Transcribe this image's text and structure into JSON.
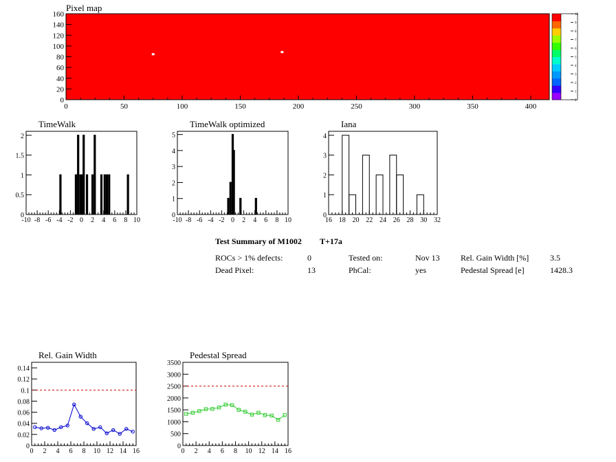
{
  "colors": {
    "map_red": "#ff0000",
    "hist_line": "#000000",
    "gain_line": "#0000cc",
    "pedestal_line": "#33cc33",
    "ref_line": "#cc0000"
  },
  "chart_data": [
    {
      "type": "heatmap",
      "title": "Pixel map",
      "xlim": [
        0,
        416
      ],
      "ylim": [
        0,
        160
      ],
      "x_ticks": [
        "0",
        "50",
        "100",
        "150",
        "200",
        "250",
        "300",
        "350",
        "400"
      ],
      "y_ticks": [
        "0",
        "20",
        "40",
        "60",
        "80",
        "100",
        "120",
        "140",
        "160"
      ],
      "fill_value": 10,
      "hot_pixels": [
        {
          "x": 75,
          "y": 84,
          "value": 0
        },
        {
          "x": 186,
          "y": 88,
          "value": 0
        }
      ],
      "colorbar": {
        "range": [
          0,
          10
        ],
        "labels": [
          "0",
          "1",
          "2",
          "3",
          "4",
          "5",
          "6",
          "7",
          "8",
          "9",
          "10"
        ],
        "palette": [
          "#9900ff",
          "#3300ff",
          "#0066ff",
          "#0099ff",
          "#00ccff",
          "#00ffcc",
          "#00ff66",
          "#33ff00",
          "#99ff00",
          "#ffcc00",
          "#ff6600",
          "#ff0000"
        ]
      }
    },
    {
      "type": "bar",
      "title": "TimeWalk",
      "xlim": [
        -10,
        10
      ],
      "ylim": [
        0,
        2.1
      ],
      "x_ticks": [
        "-10",
        "-8",
        "-6",
        "-4",
        "-2",
        "0",
        "2",
        "4",
        "6",
        "8",
        "10"
      ],
      "y_ticks": [
        "0",
        "0.5",
        "1",
        "1.5",
        "2"
      ],
      "bin_width": 0.2,
      "bins": [
        {
          "x": -3.9,
          "value": 1
        },
        {
          "x": -1.1,
          "value": 1
        },
        {
          "x": -0.7,
          "value": 2
        },
        {
          "x": -0.3,
          "value": 1
        },
        {
          "x": 0.1,
          "value": 1
        },
        {
          "x": 0.3,
          "value": 2
        },
        {
          "x": 0.9,
          "value": 1
        },
        {
          "x": 1.9,
          "value": 1
        },
        {
          "x": 2.3,
          "value": 2
        },
        {
          "x": 3.5,
          "value": 1
        },
        {
          "x": 4.1,
          "value": 1
        },
        {
          "x": 4.5,
          "value": 1
        },
        {
          "x": 4.9,
          "value": 1
        },
        {
          "x": 8.3,
          "value": 1
        }
      ]
    },
    {
      "type": "bar",
      "title": "TimeWalk optimized",
      "xlim": [
        -10,
        10
      ],
      "ylim": [
        0,
        5.2
      ],
      "x_ticks": [
        "-10",
        "-8",
        "-6",
        "-4",
        "-2",
        "0",
        "2",
        "4",
        "6",
        "8",
        "10"
      ],
      "y_ticks": [
        "0",
        "1",
        "2",
        "3",
        "4",
        "5"
      ],
      "bin_width": 0.2,
      "bins": [
        {
          "x": -0.9,
          "value": 1
        },
        {
          "x": -0.5,
          "value": 2
        },
        {
          "x": -0.1,
          "value": 5
        },
        {
          "x": 0.1,
          "value": 4
        },
        {
          "x": 1.3,
          "value": 1
        },
        {
          "x": 4.1,
          "value": 1
        }
      ]
    },
    {
      "type": "bar",
      "title": "Iana",
      "xlim": [
        16,
        32
      ],
      "ylim": [
        0,
        4.2
      ],
      "x_ticks": [
        "16",
        "18",
        "20",
        "22",
        "24",
        "26",
        "28",
        "30",
        "32"
      ],
      "y_ticks": [
        "0",
        "1",
        "2",
        "3",
        "4"
      ],
      "bin_width": 1,
      "bins": [
        {
          "x": 18,
          "value": 4
        },
        {
          "x": 19,
          "value": 1
        },
        {
          "x": 21,
          "value": 3
        },
        {
          "x": 23,
          "value": 2
        },
        {
          "x": 25,
          "value": 3
        },
        {
          "x": 26,
          "value": 2
        },
        {
          "x": 29,
          "value": 1
        }
      ]
    },
    {
      "type": "line",
      "title": "Rel. Gain Width",
      "xlim": [
        0,
        16
      ],
      "ylim": [
        0,
        0.15
      ],
      "x_ticks": [
        "0",
        "2",
        "4",
        "6",
        "8",
        "10",
        "12",
        "14",
        "16"
      ],
      "y_ticks": [
        "0",
        "0.02",
        "0.04",
        "0.06",
        "0.08",
        "0.1",
        "0.12",
        "0.14"
      ],
      "x": [
        0.5,
        1.5,
        2.5,
        3.5,
        4.5,
        5.5,
        6.5,
        7.5,
        8.5,
        9.5,
        10.5,
        11.5,
        12.5,
        13.5,
        14.5,
        15.5
      ],
      "values": [
        0.033,
        0.031,
        0.032,
        0.028,
        0.033,
        0.036,
        0.074,
        0.052,
        0.04,
        0.03,
        0.033,
        0.022,
        0.028,
        0.021,
        0.03,
        0.025
      ],
      "reference": 0.1
    },
    {
      "type": "line",
      "title": "Pedestal Spread",
      "xlim": [
        0,
        16
      ],
      "ylim": [
        0,
        3500
      ],
      "x_ticks": [
        "0",
        "2",
        "4",
        "6",
        "8",
        "10",
        "12",
        "14",
        "16"
      ],
      "y_ticks": [
        "0",
        "500",
        "1000",
        "1500",
        "2000",
        "2500",
        "3000",
        "3500"
      ],
      "x": [
        0.5,
        1.5,
        2.5,
        3.5,
        4.5,
        5.5,
        6.5,
        7.5,
        8.5,
        9.5,
        10.5,
        11.5,
        12.5,
        13.5,
        14.5,
        15.5
      ],
      "values": [
        1330,
        1380,
        1450,
        1530,
        1540,
        1600,
        1720,
        1700,
        1500,
        1420,
        1300,
        1380,
        1280,
        1260,
        1080,
        1280
      ],
      "reference": 2500
    }
  ],
  "summary": {
    "title": "Test Summary of M1002",
    "grade": "T+17a",
    "rocs_label": "ROCs > 1% defects:",
    "rocs_value": "0",
    "dead_label": "Dead Pixel:",
    "dead_value": "13",
    "tested_label": "Tested on:",
    "tested_value": "Nov 13",
    "phcal_label": "PhCal:",
    "phcal_value": "yes",
    "gainw_label": "Rel. Gain Width [%]",
    "gainw_value": "3.5",
    "ped_label": "Pedestal Spread [e]",
    "ped_value": "1428.3"
  }
}
